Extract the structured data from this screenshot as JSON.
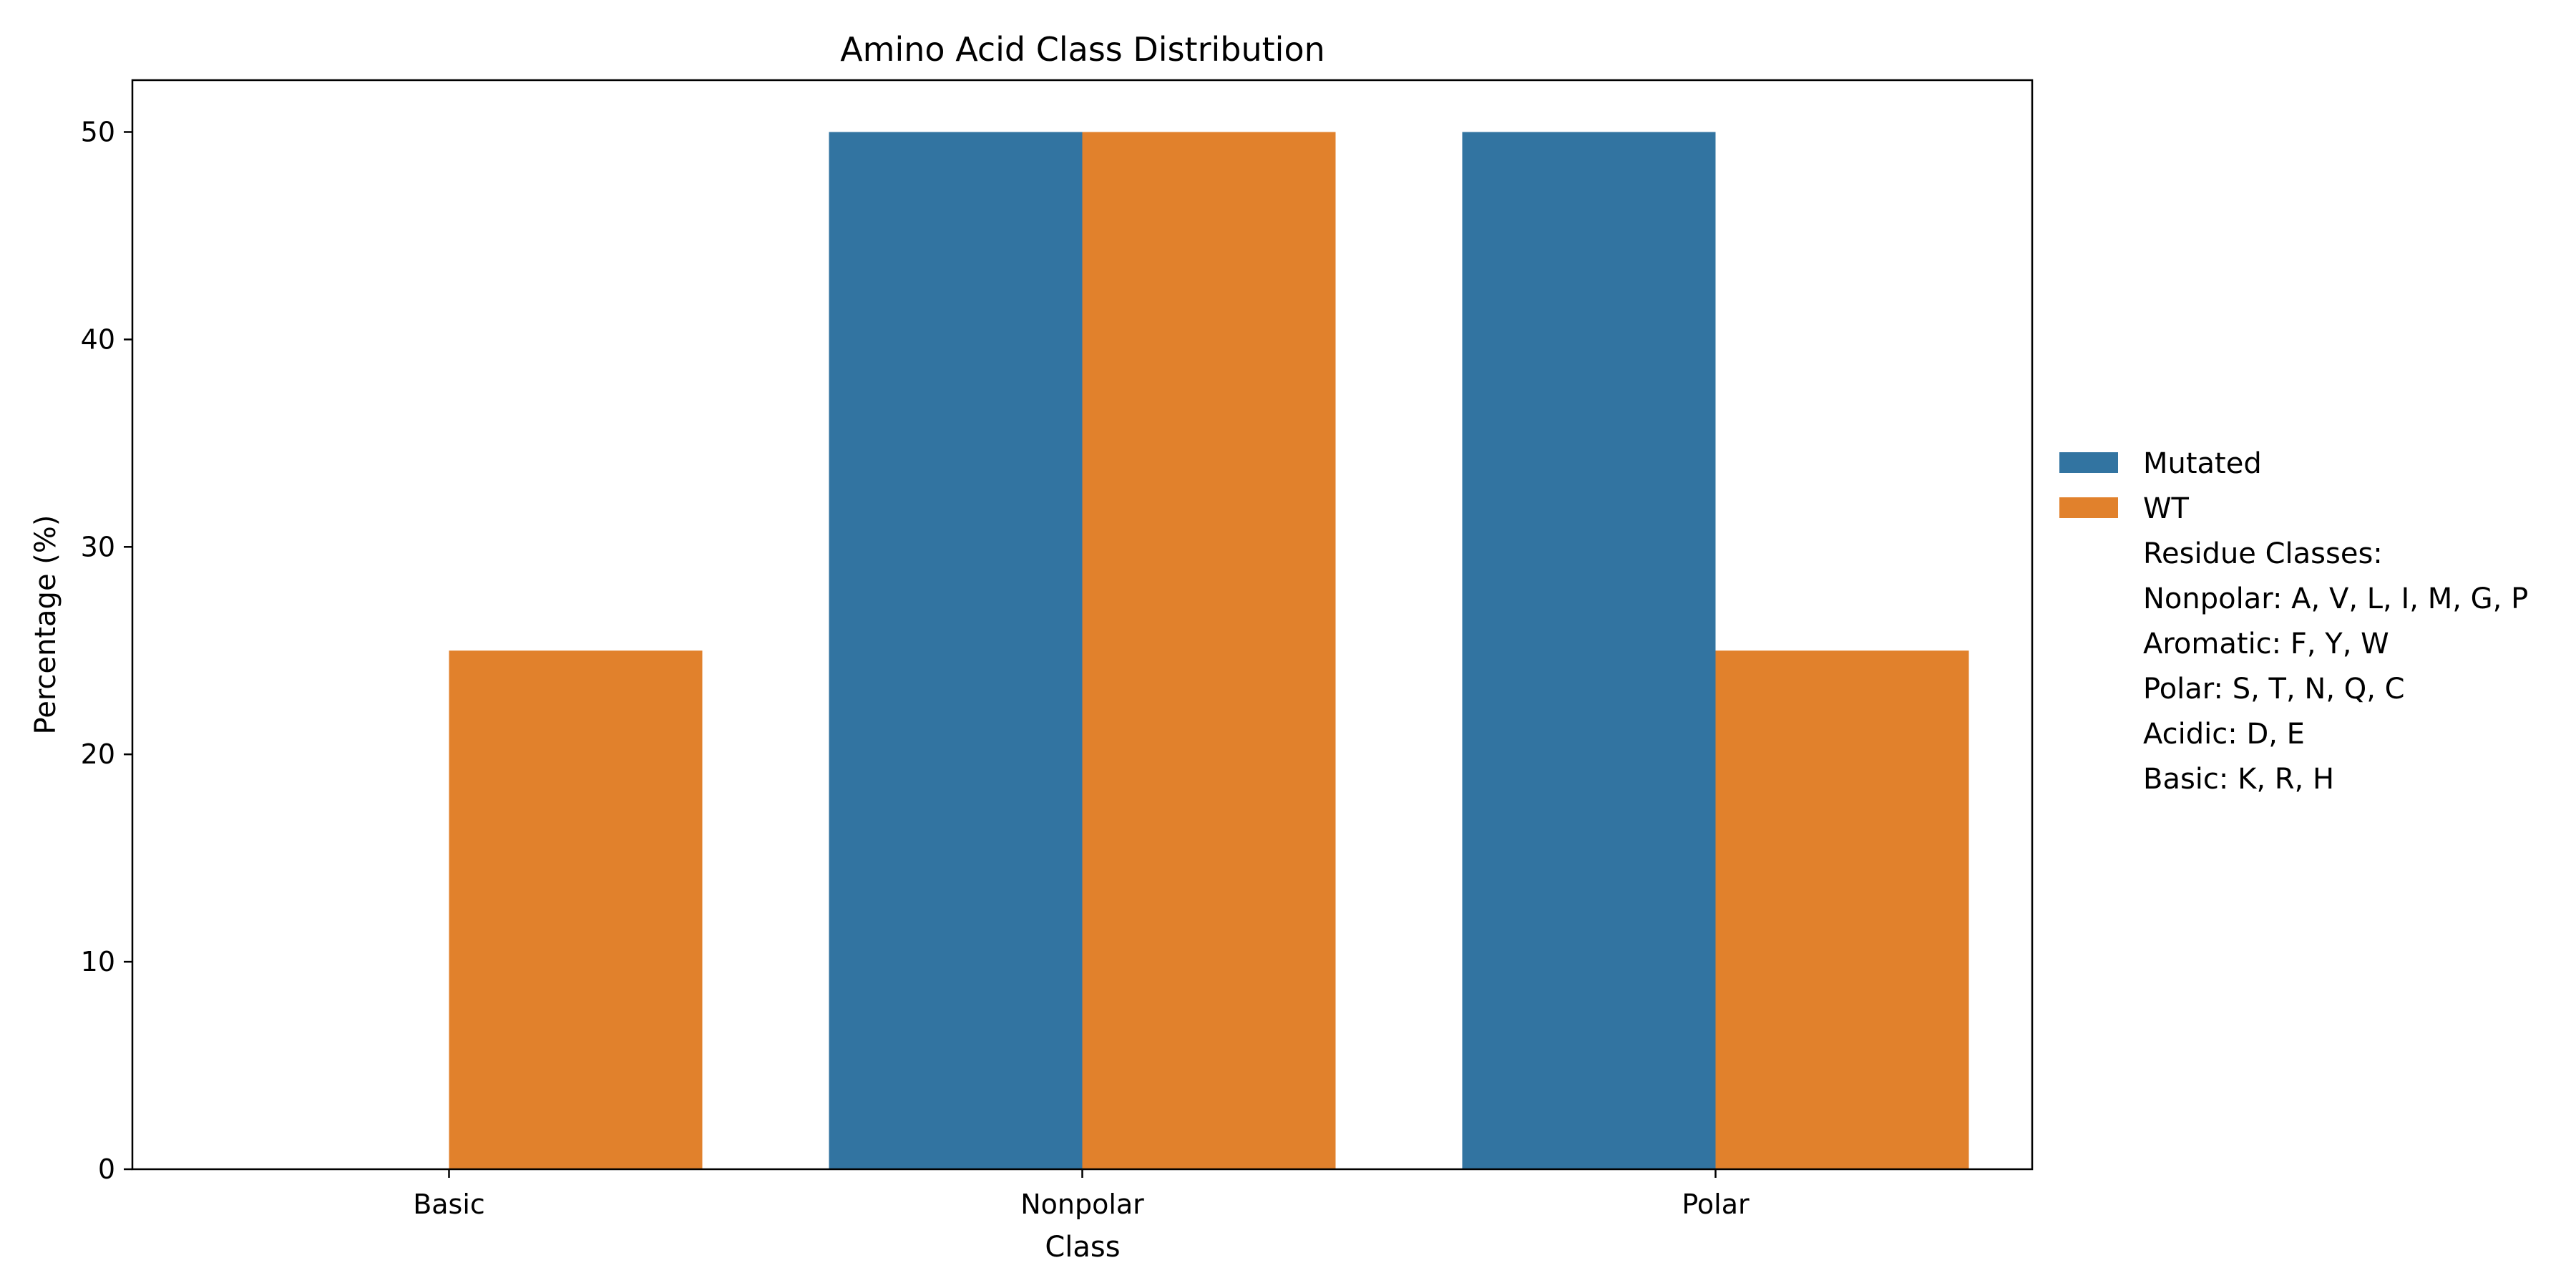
{
  "chart_data": {
    "type": "bar",
    "title": "Amino Acid Class Distribution",
    "xlabel": "Class",
    "ylabel": "Percentage (%)",
    "categories": [
      "Basic",
      "Nonpolar",
      "Polar"
    ],
    "series": [
      {
        "name": "Mutated",
        "color": "#3274a1",
        "values": [
          0,
          50,
          50
        ]
      },
      {
        "name": "WT",
        "color": "#e1812c",
        "values": [
          25,
          50,
          25
        ]
      }
    ],
    "ylim": [
      0,
      52.5
    ],
    "yticks": [
      0,
      10,
      20,
      30,
      40,
      50
    ],
    "grid": false,
    "legend": {
      "placement": "right",
      "notes": [
        "Residue Classes:",
        "Nonpolar: A, V, L, I, M, G, P",
        "Aromatic: F, Y, W",
        "Polar: S, T, N, Q, C",
        "Acidic: D, E",
        "Basic: K, R, H"
      ]
    }
  }
}
